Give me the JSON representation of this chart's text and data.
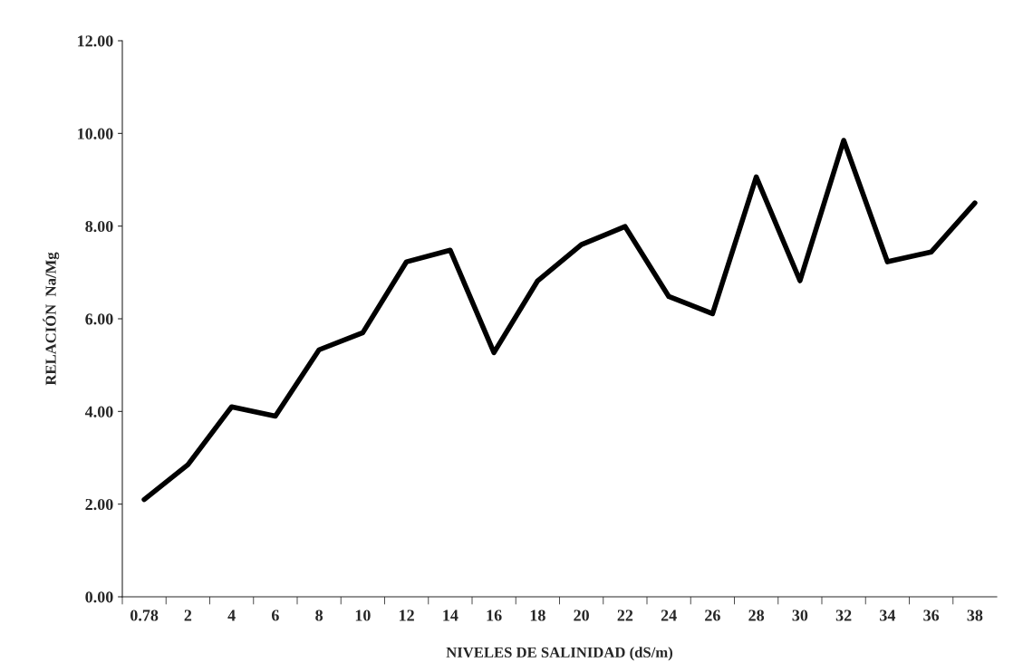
{
  "chart_data": {
    "type": "line",
    "xlabel": "NIVELES DE SALINIDAD (dS/m)",
    "ylabel": "RELACIÓN  Na/Mg",
    "categories": [
      "0.78",
      "2",
      "4",
      "6",
      "8",
      "10",
      "12",
      "14",
      "16",
      "18",
      "20",
      "22",
      "24",
      "26",
      "28",
      "30",
      "32",
      "34",
      "36",
      "38"
    ],
    "series": [
      {
        "color": "#000000",
        "values": [
          2.1,
          2.85,
          4.1,
          3.9,
          5.33,
          5.7,
          7.23,
          7.48,
          5.27,
          6.82,
          7.6,
          7.99,
          6.48,
          6.11,
          9.06,
          6.82,
          9.85,
          7.23,
          7.44,
          8.5
        ]
      }
    ],
    "ylim": [
      0,
      12
    ],
    "yticks": [
      {
        "value": 0,
        "label": "0.00"
      },
      {
        "value": 2,
        "label": "2.00"
      },
      {
        "value": 4,
        "label": "4.00"
      },
      {
        "value": 6,
        "label": "6.00"
      },
      {
        "value": 8,
        "label": "8.00"
      },
      {
        "value": 10,
        "label": "10.00"
      },
      {
        "value": 12,
        "label": "12.00"
      }
    ],
    "grid": false,
    "marker": "none",
    "line_style": "solid"
  }
}
